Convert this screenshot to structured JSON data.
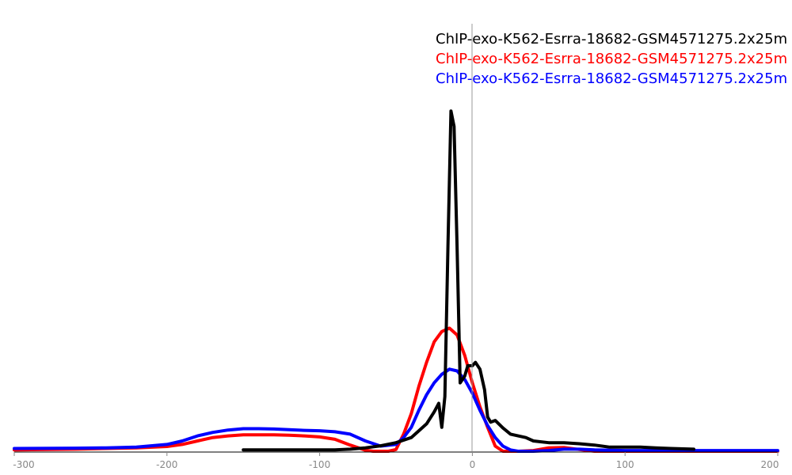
{
  "chart_data": {
    "type": "line",
    "xlim": [
      -300,
      200
    ],
    "ylim": [
      0,
      1
    ],
    "x_ticks": [
      -300,
      -200,
      -100,
      0,
      100,
      200
    ],
    "x_tick_labels": [
      "-300",
      "-200",
      "-100",
      "0",
      "100",
      "200"
    ],
    "vertical_line_at": 0,
    "legend_placement": "top-right",
    "grid": false,
    "series": [
      {
        "name": "ChIP-exo-K562-Esrra-18682-GSM4571275.2x25m",
        "color": "#000000",
        "x": [
          -150,
          -130,
          -110,
          -90,
          -80,
          -70,
          -60,
          -50,
          -40,
          -35,
          -30,
          -25,
          -22,
          -20,
          -18,
          -16,
          -14,
          -12,
          -10,
          -8,
          -5,
          -3,
          0,
          2,
          5,
          8,
          10,
          12,
          15,
          20,
          25,
          30,
          35,
          40,
          50,
          60,
          70,
          80,
          90,
          100,
          110,
          120,
          130,
          145
        ],
        "y": [
          0.004,
          0.004,
          0.004,
          0.004,
          0.006,
          0.01,
          0.016,
          0.025,
          0.04,
          0.06,
          0.08,
          0.115,
          0.14,
          0.07,
          0.16,
          0.6,
          0.995,
          0.95,
          0.6,
          0.2,
          0.22,
          0.25,
          0.25,
          0.26,
          0.24,
          0.18,
          0.1,
          0.085,
          0.09,
          0.068,
          0.05,
          0.045,
          0.04,
          0.03,
          0.025,
          0.025,
          0.022,
          0.018,
          0.012,
          0.012,
          0.012,
          0.01,
          0.008,
          0.006
        ]
      },
      {
        "name": "ChIP-exo-K562-Esrra-18682-GSM4571275.2x25m",
        "color": "#ff0000",
        "x": [
          -300,
          -260,
          -240,
          -220,
          -200,
          -190,
          -180,
          -170,
          -160,
          -150,
          -140,
          -130,
          -120,
          -110,
          -100,
          -90,
          -80,
          -70,
          -65,
          -60,
          -55,
          -50,
          -45,
          -40,
          -35,
          -30,
          -25,
          -20,
          -15,
          -10,
          -5,
          0,
          5,
          10,
          15,
          20,
          25,
          30,
          40,
          50,
          60,
          70,
          80,
          100,
          150,
          200
        ],
        "y": [
          0.004,
          0.006,
          0.008,
          0.01,
          0.014,
          0.02,
          0.03,
          0.04,
          0.045,
          0.048,
          0.048,
          0.048,
          0.047,
          0.045,
          0.042,
          0.035,
          0.018,
          0.003,
          0,
          0,
          0,
          0.005,
          0.05,
          0.11,
          0.19,
          0.26,
          0.32,
          0.35,
          0.36,
          0.34,
          0.28,
          0.2,
          0.13,
          0.07,
          0.015,
          0,
          0,
          0,
          0.002,
          0.01,
          0.011,
          0.005,
          0,
          0,
          0,
          0
        ]
      },
      {
        "name": "ChIP-exo-K562-Esrra-18682-GSM4571275.2x25m",
        "color": "#0000ff",
        "x": [
          -300,
          -260,
          -240,
          -220,
          -200,
          -190,
          -180,
          -170,
          -160,
          -150,
          -140,
          -130,
          -120,
          -110,
          -100,
          -90,
          -80,
          -70,
          -60,
          -50,
          -45,
          -40,
          -35,
          -30,
          -25,
          -20,
          -15,
          -10,
          -5,
          0,
          5,
          10,
          15,
          20,
          25,
          30,
          40,
          50,
          60,
          70,
          80,
          100,
          150,
          200
        ],
        "y": [
          0.008,
          0.009,
          0.01,
          0.012,
          0.02,
          0.03,
          0.045,
          0.055,
          0.062,
          0.066,
          0.066,
          0.065,
          0.063,
          0.061,
          0.06,
          0.057,
          0.05,
          0.03,
          0.015,
          0.02,
          0.04,
          0.07,
          0.12,
          0.165,
          0.2,
          0.225,
          0.24,
          0.235,
          0.21,
          0.17,
          0.12,
          0.075,
          0.04,
          0.015,
          0.004,
          0,
          0,
          0.002,
          0.006,
          0.006,
          0.004,
          0.002,
          0.002,
          0.002
        ]
      }
    ]
  }
}
